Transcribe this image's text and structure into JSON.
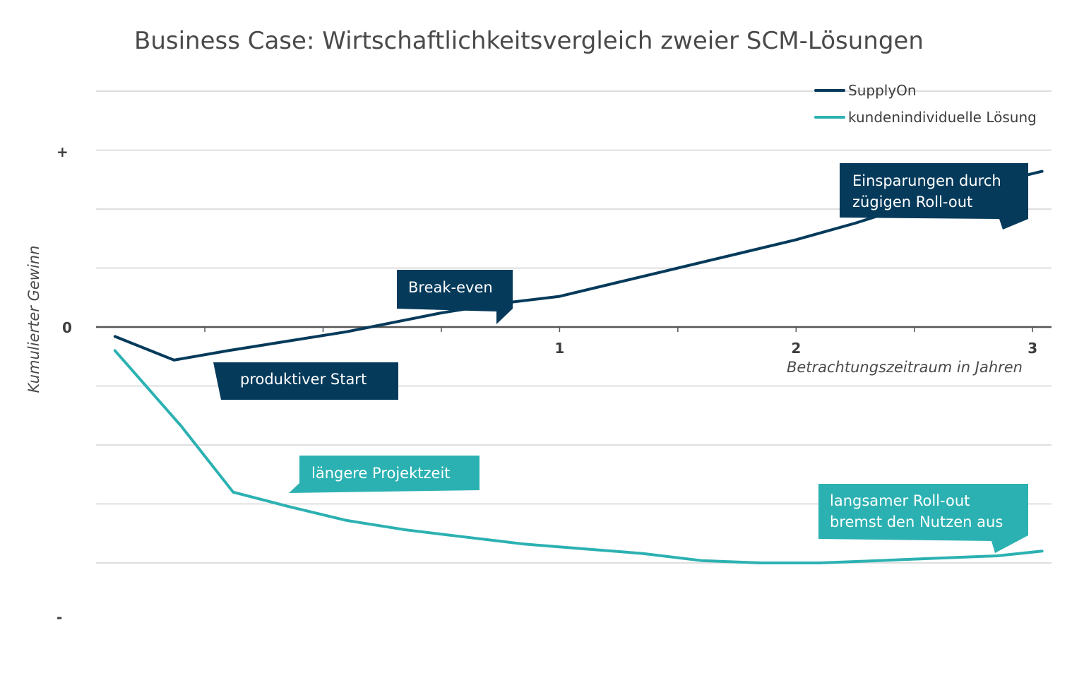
{
  "title": "Business Case: Wirtschaftlichkeitsvergleich zweier SCM-Lösungen",
  "colors": {
    "supplyon": "#053a5b",
    "kunden": "#2cb1b2",
    "grid": "#d3d3d3",
    "axis": "#555555"
  },
  "chart_data": {
    "type": "line",
    "title": "Business Case: Wirtschaftlichkeitsvergleich zweier SCM-Lösungen",
    "xlabel": "Betrachtungszeitraum in Jahren",
    "ylabel": "Kumulierter Gewinn",
    "x_ticks": [
      "1",
      "2",
      "3"
    ],
    "y_ticks": {
      "top": "+",
      "zero": "0",
      "bottom": "-"
    },
    "xlim": [
      -0.96,
      3.08
    ],
    "ylim": [
      -1,
      1
    ],
    "grid": true,
    "legend_position": "top-right",
    "series": [
      {
        "name": "SupplyOn",
        "color": "#053a5b",
        "x": [
          -0.88,
          -0.63,
          -0.4,
          -0.15,
          0.1,
          0.3,
          0.5,
          0.75,
          1.0,
          1.25,
          1.5,
          1.75,
          2.0,
          2.25,
          2.5,
          2.75,
          3.04
        ],
        "y": [
          -0.04,
          -0.14,
          -0.1,
          -0.06,
          -0.02,
          0.02,
          0.06,
          0.1,
          0.13,
          0.19,
          0.25,
          0.31,
          0.37,
          0.44,
          0.52,
          0.59,
          0.66
        ]
      },
      {
        "name": "kundenindividuelle Lösung",
        "color": "#2cb1b2",
        "x": [
          -0.88,
          -0.6,
          -0.38,
          -0.15,
          0.1,
          0.35,
          0.6,
          0.85,
          1.1,
          1.35,
          1.6,
          1.85,
          2.1,
          2.35,
          2.6,
          2.85,
          3.04
        ],
        "y": [
          -0.1,
          -0.42,
          -0.7,
          -0.76,
          -0.82,
          -0.86,
          -0.89,
          -0.92,
          -0.94,
          -0.96,
          -0.99,
          -1.0,
          -1.0,
          -0.99,
          -0.98,
          -0.97,
          -0.95
        ]
      }
    ],
    "annotations": [
      {
        "series": 0,
        "lines": [
          "Einsparungen durch",
          "zügigen Roll-out"
        ]
      },
      {
        "series": 0,
        "lines": [
          "Break-even"
        ]
      },
      {
        "series": 0,
        "lines": [
          "produktiver Start"
        ]
      },
      {
        "series": 1,
        "lines": [
          "längere Projektzeit"
        ]
      },
      {
        "series": 1,
        "lines": [
          "langsamer Roll-out",
          "bremst den Nutzen aus"
        ]
      }
    ]
  }
}
